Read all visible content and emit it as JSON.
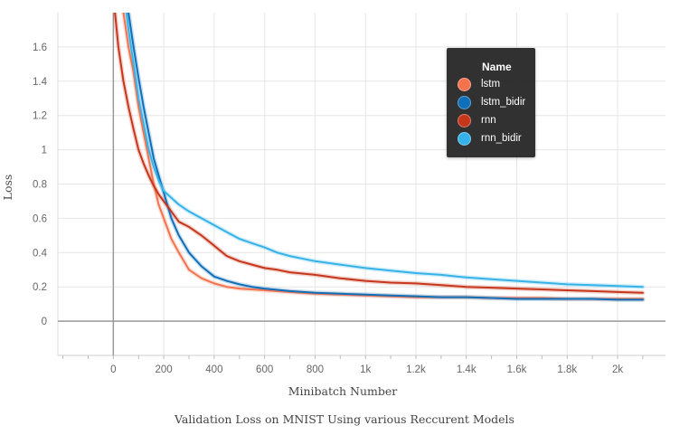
{
  "chart_data": {
    "type": "line",
    "title": "",
    "caption": "Validation Loss on MNIST Using various Reccurent Models",
    "xlabel": "Minibatch Number",
    "ylabel": "Loss",
    "xlim": [
      -220,
      2190
    ],
    "ylim": [
      -0.2,
      1.8
    ],
    "xticks": [
      0,
      200,
      400,
      600,
      800,
      1000,
      1200,
      1400,
      1600,
      1800,
      2000
    ],
    "xtick_labels": [
      "0",
      "200",
      "400",
      "600",
      "800",
      "1k",
      "1.2k",
      "1.4k",
      "1.6k",
      "1.8k",
      "2k"
    ],
    "yticks": [
      0,
      0.2,
      0.4,
      0.6,
      0.8,
      1.0,
      1.2,
      1.4,
      1.6
    ],
    "ytick_labels": [
      "0",
      "0.2",
      "0.4",
      "0.6",
      "0.8",
      "1",
      "1.2",
      "1.4",
      "1.6"
    ],
    "grid": true,
    "legend_position": "top-right",
    "legend": {
      "title": "Name",
      "items": [
        {
          "name": "lstm",
          "color": "#f4734f"
        },
        {
          "name": "lstm_bidir",
          "color": "#0f6fb8"
        },
        {
          "name": "rnn",
          "color": "#c6361b"
        },
        {
          "name": "rnn_bidir",
          "color": "#35b3e9"
        }
      ]
    },
    "series": [
      {
        "name": "lstm",
        "color": "#f4734f",
        "x": [
          20,
          40,
          60,
          80,
          100,
          120,
          140,
          160,
          180,
          200,
          230,
          260,
          300,
          350,
          400,
          450,
          500,
          550,
          600,
          700,
          800,
          900,
          1000,
          1100,
          1200,
          1300,
          1400,
          1500,
          1600,
          1700,
          1800,
          1900,
          2000,
          2100
        ],
        "y": [
          1.95,
          1.8,
          1.6,
          1.45,
          1.25,
          1.1,
          0.95,
          0.8,
          0.68,
          0.6,
          0.48,
          0.4,
          0.3,
          0.25,
          0.22,
          0.2,
          0.19,
          0.185,
          0.18,
          0.17,
          0.16,
          0.155,
          0.15,
          0.145,
          0.14,
          0.14,
          0.14,
          0.135,
          0.135,
          0.135,
          0.13,
          0.13,
          0.13,
          0.13
        ]
      },
      {
        "name": "lstm_bidir",
        "color": "#0f6fb8",
        "x": [
          40,
          60,
          80,
          100,
          120,
          140,
          160,
          180,
          200,
          230,
          260,
          300,
          350,
          400,
          450,
          500,
          550,
          600,
          700,
          800,
          900,
          1000,
          1100,
          1200,
          1300,
          1400,
          1500,
          1600,
          1700,
          1800,
          1900,
          2000,
          2100
        ],
        "y": [
          1.95,
          1.8,
          1.6,
          1.42,
          1.25,
          1.1,
          0.95,
          0.85,
          0.75,
          0.6,
          0.5,
          0.4,
          0.32,
          0.26,
          0.235,
          0.215,
          0.2,
          0.19,
          0.175,
          0.165,
          0.16,
          0.155,
          0.15,
          0.145,
          0.14,
          0.14,
          0.135,
          0.13,
          0.13,
          0.13,
          0.13,
          0.125,
          0.125
        ]
      },
      {
        "name": "rnn",
        "color": "#c6361b",
        "x": [
          0,
          20,
          40,
          60,
          80,
          100,
          120,
          140,
          160,
          180,
          200,
          230,
          260,
          300,
          350,
          400,
          450,
          500,
          550,
          600,
          650,
          700,
          800,
          900,
          1000,
          1100,
          1200,
          1300,
          1400,
          1500,
          1600,
          1700,
          1800,
          1900,
          2000,
          2100
        ],
        "y": [
          1.9,
          1.6,
          1.4,
          1.25,
          1.12,
          1.0,
          0.92,
          0.85,
          0.79,
          0.74,
          0.7,
          0.64,
          0.58,
          0.55,
          0.5,
          0.44,
          0.38,
          0.35,
          0.33,
          0.31,
          0.3,
          0.285,
          0.27,
          0.25,
          0.235,
          0.225,
          0.22,
          0.21,
          0.2,
          0.195,
          0.19,
          0.185,
          0.18,
          0.175,
          0.17,
          0.165
        ]
      },
      {
        "name": "rnn_bidir",
        "color": "#35b3e9",
        "x": [
          40,
          60,
          80,
          100,
          120,
          140,
          160,
          180,
          200,
          230,
          260,
          300,
          350,
          400,
          450,
          500,
          550,
          600,
          650,
          700,
          800,
          900,
          1000,
          1100,
          1200,
          1300,
          1400,
          1500,
          1600,
          1700,
          1800,
          1900,
          2000,
          2100
        ],
        "y": [
          1.95,
          1.7,
          1.5,
          1.3,
          1.15,
          1.0,
          0.9,
          0.82,
          0.76,
          0.72,
          0.68,
          0.64,
          0.6,
          0.56,
          0.52,
          0.48,
          0.455,
          0.43,
          0.4,
          0.38,
          0.35,
          0.33,
          0.31,
          0.295,
          0.28,
          0.27,
          0.255,
          0.245,
          0.235,
          0.225,
          0.215,
          0.21,
          0.205,
          0.2
        ]
      }
    ]
  }
}
